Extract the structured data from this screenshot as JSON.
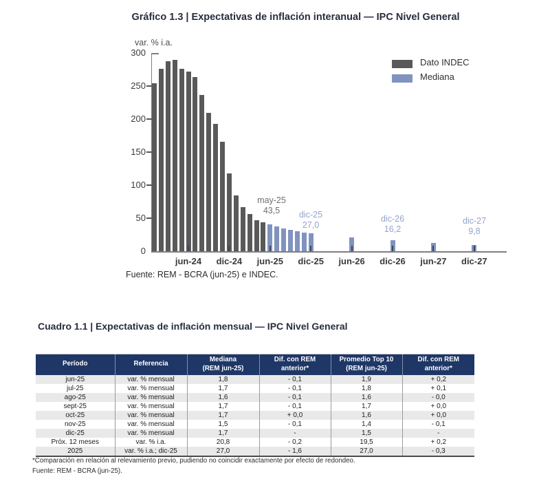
{
  "chart": {
    "title": "Gráfico 1.3 | Expectativas de inflación interanual — IPC Nivel General",
    "y_axis_unit_label": "var. % i.a.",
    "source": "Fuente: REM - BCRA (jun-25) e INDEC.",
    "legend": [
      {
        "name": "Dato INDEC",
        "color": "#595959"
      },
      {
        "name": "Mediana",
        "color": "#8093BE"
      }
    ],
    "annotations": [
      {
        "month": "may-25",
        "value_label": "43,5",
        "color": "#6E6E6E"
      },
      {
        "month": "dic-25",
        "value_label": "27,0",
        "color": "#93A3CE"
      },
      {
        "month": "dic-26",
        "value_label": "16,2",
        "color": "#93A3CE"
      },
      {
        "month": "dic-27",
        "value_label": "9,8",
        "color": "#93A3CE"
      }
    ]
  },
  "chart_data": {
    "type": "bar",
    "title": "Gráfico 1.3 | Expectativas de inflación interanual — IPC Nivel General",
    "xlabel": "",
    "ylabel": "var. % i.a.",
    "ylim": [
      0,
      300
    ],
    "yticks": [
      0,
      50,
      100,
      150,
      200,
      250,
      300
    ],
    "x_tick_labels": [
      "jun-24",
      "dic-24",
      "jun-25",
      "dic-25",
      "jun-26",
      "dic-26",
      "jun-27",
      "dic-27"
    ],
    "grid": false,
    "legend_position": "top-right",
    "series": [
      {
        "name": "Dato INDEC",
        "color": "#595959",
        "points": [
          [
            "ene-24",
            254.2
          ],
          [
            "feb-24",
            276.2
          ],
          [
            "mar-24",
            287.9
          ],
          [
            "abr-24",
            289.4
          ],
          [
            "may-24",
            276.4
          ],
          [
            "jun-24",
            271.5
          ],
          [
            "jul-24",
            263.4
          ],
          [
            "ago-24",
            236.7
          ],
          [
            "sep-24",
            209.0
          ],
          [
            "oct-24",
            193.0
          ],
          [
            "nov-24",
            166.0
          ],
          [
            "dic-24",
            117.8
          ],
          [
            "ene-25",
            84.5
          ],
          [
            "feb-25",
            66.9
          ],
          [
            "mar-25",
            55.9
          ],
          [
            "abr-25",
            47.3
          ],
          [
            "may-25",
            43.5
          ]
        ]
      },
      {
        "name": "Mediana",
        "color": "#8093BE",
        "points": [
          [
            "jun-25",
            40.2
          ],
          [
            "jul-25",
            37.0
          ],
          [
            "ago-25",
            34.5
          ],
          [
            "sep-25",
            32.1
          ],
          [
            "oct-25",
            30.0
          ],
          [
            "nov-25",
            28.6
          ],
          [
            "dic-25",
            27.0
          ],
          [
            "jun-26",
            21.0
          ],
          [
            "dic-26",
            16.2
          ],
          [
            "jun-27",
            12.6
          ],
          [
            "dic-27",
            9.8
          ]
        ]
      }
    ],
    "annotations": [
      {
        "anchor": "may-25",
        "text": "may-25 43,5"
      },
      {
        "anchor": "dic-25",
        "text": "dic-25 27,0"
      },
      {
        "anchor": "dic-26",
        "text": "dic-26 16,2"
      },
      {
        "anchor": "dic-27",
        "text": "dic-27 9,8"
      }
    ]
  },
  "table": {
    "title": "Cuadro 1.1 | Expectativas de inflación mensual — IPC Nivel General",
    "header_bg": "#1F3766",
    "zebra_bg": "#E9E9E9",
    "columns": [
      {
        "lines": [
          "Período"
        ]
      },
      {
        "lines": [
          "Referencia"
        ]
      },
      {
        "lines": [
          "Mediana",
          "(REM jun-25)"
        ]
      },
      {
        "lines": [
          "Dif. con REM",
          "anterior*"
        ]
      },
      {
        "lines": [
          "Promedio Top 10",
          "(REM jun-25)"
        ]
      },
      {
        "lines": [
          "Dif. con REM",
          "anterior*"
        ]
      }
    ],
    "rows": [
      [
        "jun-25",
        "var. % mensual",
        "1,8",
        "- 0,1",
        "1,9",
        "+ 0,2"
      ],
      [
        "jul-25",
        "var. % mensual",
        "1,7",
        "- 0,1",
        "1,8",
        "+ 0,1"
      ],
      [
        "ago-25",
        "var. % mensual",
        "1,6",
        "- 0,1",
        "1,6",
        "- 0,0"
      ],
      [
        "sept-25",
        "var. % mensual",
        "1,7",
        "- 0,1",
        "1,7",
        "+ 0,0"
      ],
      [
        "oct-25",
        "var. % mensual",
        "1,7",
        "+ 0,0",
        "1,6",
        "+ 0,0"
      ],
      [
        "nov-25",
        "var. % mensual",
        "1,5",
        "- 0,1",
        "1,4",
        "- 0,1"
      ],
      [
        "dic-25",
        "var. % mensual",
        "1,7",
        "-",
        "1,5",
        "-"
      ],
      [
        "Próx. 12 meses",
        "var. % i.a.",
        "20,8",
        "- 0,2",
        "19,5",
        "+ 0,2"
      ],
      [
        "2025",
        "var. % i.a.; dic-25",
        "27,0",
        "- 1,6",
        "27,0",
        "- 0,3"
      ]
    ],
    "footnote": "*Comparación en relación al relevamiento previo, pudiendo no coincidir exactamente por efecto de redondeo.",
    "source": "Fuente: REM - BCRA (jun-25)."
  }
}
